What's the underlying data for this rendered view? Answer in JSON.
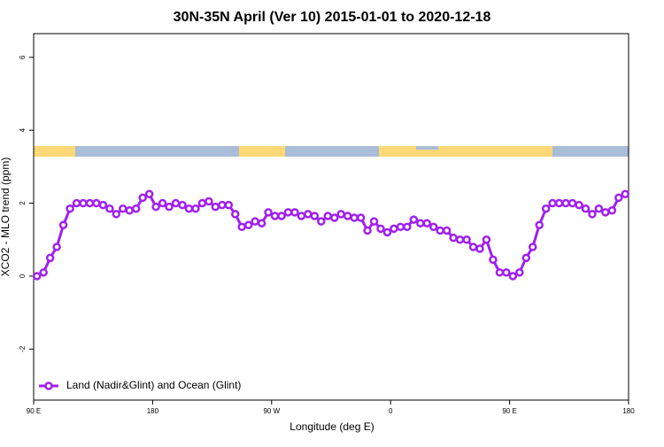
{
  "chart_data": {
    "type": "line",
    "title": "30N-35N April (Ver 10)   2015-01-01 to 2020-12-18",
    "x_label": "Longitude (deg E)",
    "y_label": "XCO2 - MLO trend (ppm)",
    "x": [
      92.5,
      97.5,
      102.5,
      107.5,
      112.5,
      117.5,
      122.5,
      127.5,
      132.5,
      137.5,
      142.5,
      147.5,
      152.5,
      157.5,
      162.5,
      167.5,
      172.5,
      177.5,
      182.5,
      187.5,
      192.5,
      197.5,
      202.5,
      207.5,
      212.5,
      217.5,
      222.5,
      227.5,
      232.5,
      237.5,
      242.5,
      247.5,
      252.5,
      257.5,
      262.5,
      267.5,
      272.5,
      277.5,
      282.5,
      287.5,
      292.5,
      297.5,
      302.5,
      307.5,
      312.5,
      317.5,
      322.5,
      327.5,
      332.5,
      337.5,
      342.5,
      347.5,
      352.5,
      357.5,
      362.5,
      367.5,
      372.5,
      377.5,
      382.5,
      387.5,
      392.5,
      397.5,
      402.5,
      407.5,
      412.5,
      417.5,
      422.5,
      427.5,
      432.5,
      437.5,
      442.5,
      447.5,
      452.5,
      457.5,
      462.5,
      467.5,
      472.5,
      477.5,
      482.5,
      487.5,
      492.5,
      497.5,
      502.5,
      507.5,
      512.5,
      517.5,
      522.5,
      527.5,
      532.5,
      537.5
    ],
    "series": [
      {
        "name": "Land (Nadir&Glint) and Ocean (Glint)",
        "color": "#a020f0",
        "values": [
          0.0,
          0.1,
          0.5,
          0.8,
          1.4,
          1.85,
          2.0,
          2.0,
          2.0,
          2.0,
          1.95,
          1.85,
          1.7,
          1.85,
          1.8,
          1.85,
          2.15,
          2.25,
          1.9,
          2.0,
          1.9,
          2.0,
          1.95,
          1.85,
          1.85,
          2.0,
          2.05,
          1.9,
          1.95,
          1.95,
          1.7,
          1.35,
          1.4,
          1.5,
          1.45,
          1.75,
          1.65,
          1.65,
          1.75,
          1.75,
          1.65,
          1.7,
          1.65,
          1.5,
          1.65,
          1.6,
          1.7,
          1.65,
          1.6,
          1.6,
          1.25,
          1.5,
          1.3,
          1.2,
          1.3,
          1.35,
          1.35,
          1.55,
          1.45,
          1.45,
          1.35,
          1.25,
          1.25,
          1.05,
          1.0,
          1.0,
          0.8,
          0.75,
          1.0,
          0.45,
          0.1,
          0.1,
          0.0,
          0.1,
          0.5,
          0.8,
          1.4,
          1.85,
          2.0,
          2.0,
          2.0,
          2.0,
          1.95,
          1.85,
          1.7,
          1.85,
          1.75,
          1.8,
          2.15,
          2.25
        ]
      }
    ],
    "xlim": [
      90,
      540
    ],
    "xticks": [
      {
        "value": 90,
        "label": "90 E"
      },
      {
        "value": 180,
        "label": "180"
      },
      {
        "value": 270,
        "label": "90 W"
      },
      {
        "value": 360,
        "label": "0"
      },
      {
        "value": 450,
        "label": "90 E"
      },
      {
        "value": 540,
        "label": "180"
      }
    ],
    "ylim": [
      -3.4,
      6.65
    ],
    "yticks": [
      -2,
      0,
      2,
      4,
      6
    ],
    "legend": "bottom-left"
  }
}
